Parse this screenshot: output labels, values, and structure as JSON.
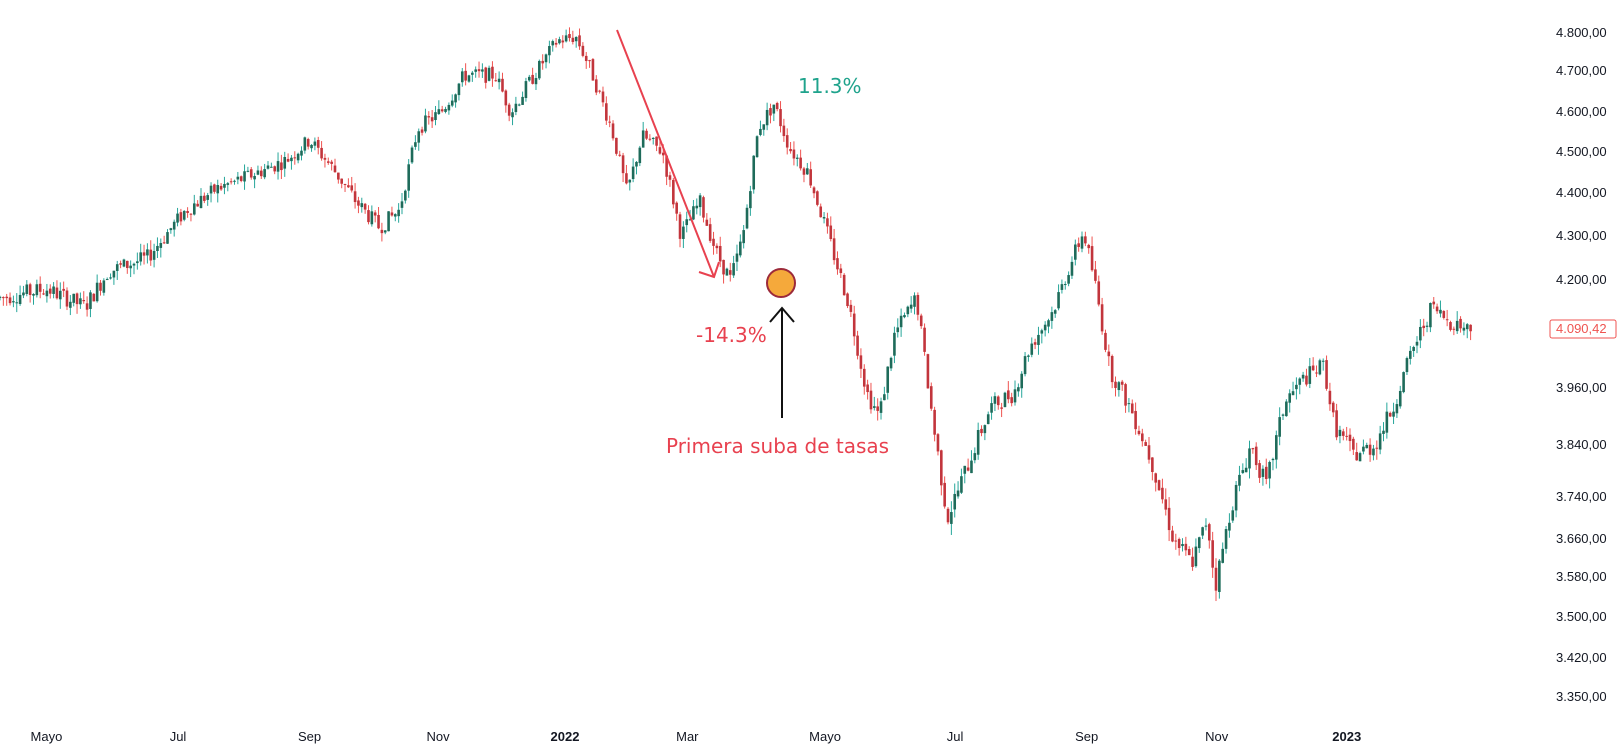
{
  "chart_data": {
    "type": "candlestick",
    "title": "",
    "ylim": [
      3320,
      4850
    ],
    "y_ticks": [
      "4.800,00",
      "4.700,00",
      "4.600,00",
      "4.500,00",
      "4.400,00",
      "4.300,00",
      "4.200,00",
      "4.090,42",
      "3.960,00",
      "3.840,00",
      "3.740,00",
      "3.660,00",
      "3.580,00",
      "3.500,00",
      "3.420,00",
      "3.350,00"
    ],
    "y_tick_values": [
      4800,
      4700,
      4600,
      4500,
      4400,
      4300,
      4200,
      4090.42,
      3960,
      3840,
      3740,
      3660,
      3580,
      3500,
      3420,
      3350
    ],
    "last_price": "4.090,42",
    "x_ticks": [
      {
        "label": "Mayo",
        "t": 0.03,
        "bold": false
      },
      {
        "label": "Jul",
        "t": 0.115,
        "bold": false
      },
      {
        "label": "Sep",
        "t": 0.2,
        "bold": false
      },
      {
        "label": "Nov",
        "t": 0.283,
        "bold": false
      },
      {
        "label": "2022",
        "t": 0.365,
        "bold": true
      },
      {
        "label": "Mar",
        "t": 0.444,
        "bold": false
      },
      {
        "label": "Mayo",
        "t": 0.533,
        "bold": false
      },
      {
        "label": "Jul",
        "t": 0.617,
        "bold": false
      },
      {
        "label": "Sep",
        "t": 0.702,
        "bold": false
      },
      {
        "label": "Nov",
        "t": 0.786,
        "bold": false
      },
      {
        "label": "2023",
        "t": 0.87,
        "bold": true
      }
    ],
    "path_anchors": [
      {
        "t": 0.0,
        "v": 4160
      },
      {
        "t": 0.03,
        "v": 4180
      },
      {
        "t": 0.055,
        "v": 4140
      },
      {
        "t": 0.07,
        "v": 4220
      },
      {
        "t": 0.095,
        "v": 4250
      },
      {
        "t": 0.12,
        "v": 4360
      },
      {
        "t": 0.14,
        "v": 4410
      },
      {
        "t": 0.16,
        "v": 4440
      },
      {
        "t": 0.185,
        "v": 4480
      },
      {
        "t": 0.2,
        "v": 4530
      },
      {
        "t": 0.215,
        "v": 4460
      },
      {
        "t": 0.23,
        "v": 4380
      },
      {
        "t": 0.245,
        "v": 4320
      },
      {
        "t": 0.258,
        "v": 4360
      },
      {
        "t": 0.27,
        "v": 4560
      },
      {
        "t": 0.285,
        "v": 4600
      },
      {
        "t": 0.3,
        "v": 4690
      },
      {
        "t": 0.32,
        "v": 4690
      },
      {
        "t": 0.33,
        "v": 4600
      },
      {
        "t": 0.345,
        "v": 4690
      },
      {
        "t": 0.36,
        "v": 4780
      },
      {
        "t": 0.372,
        "v": 4790
      },
      {
        "t": 0.382,
        "v": 4700
      },
      {
        "t": 0.395,
        "v": 4560
      },
      {
        "t": 0.405,
        "v": 4400
      },
      {
        "t": 0.415,
        "v": 4540
      },
      {
        "t": 0.428,
        "v": 4500
      },
      {
        "t": 0.44,
        "v": 4300
      },
      {
        "t": 0.452,
        "v": 4380
      },
      {
        "t": 0.463,
        "v": 4260
      },
      {
        "t": 0.472,
        "v": 4200
      },
      {
        "t": 0.48,
        "v": 4300
      },
      {
        "t": 0.49,
        "v": 4560
      },
      {
        "t": 0.5,
        "v": 4620
      },
      {
        "t": 0.51,
        "v": 4510
      },
      {
        "t": 0.522,
        "v": 4450
      },
      {
        "t": 0.535,
        "v": 4300
      },
      {
        "t": 0.548,
        "v": 4150
      },
      {
        "t": 0.56,
        "v": 3950
      },
      {
        "t": 0.568,
        "v": 3900
      },
      {
        "t": 0.578,
        "v": 4080
      },
      {
        "t": 0.592,
        "v": 4160
      },
      {
        "t": 0.603,
        "v": 3880
      },
      {
        "t": 0.612,
        "v": 3700
      },
      {
        "t": 0.625,
        "v": 3800
      },
      {
        "t": 0.64,
        "v": 3920
      },
      {
        "t": 0.655,
        "v": 3950
      },
      {
        "t": 0.665,
        "v": 4050
      },
      {
        "t": 0.68,
        "v": 4130
      },
      {
        "t": 0.693,
        "v": 4250
      },
      {
        "t": 0.7,
        "v": 4310
      },
      {
        "t": 0.707,
        "v": 4200
      },
      {
        "t": 0.717,
        "v": 4000
      },
      {
        "t": 0.73,
        "v": 3920
      },
      {
        "t": 0.745,
        "v": 3800
      },
      {
        "t": 0.758,
        "v": 3660
      },
      {
        "t": 0.77,
        "v": 3610
      },
      {
        "t": 0.78,
        "v": 3700
      },
      {
        "t": 0.785,
        "v": 3560
      },
      {
        "t": 0.795,
        "v": 3720
      },
      {
        "t": 0.808,
        "v": 3840
      },
      {
        "t": 0.818,
        "v": 3760
      },
      {
        "t": 0.83,
        "v": 3930
      },
      {
        "t": 0.842,
        "v": 3980
      },
      {
        "t": 0.855,
        "v": 4010
      },
      {
        "t": 0.862,
        "v": 3880
      },
      {
        "t": 0.875,
        "v": 3820
      },
      {
        "t": 0.888,
        "v": 3840
      },
      {
        "t": 0.9,
        "v": 3920
      },
      {
        "t": 0.912,
        "v": 4040
      },
      {
        "t": 0.925,
        "v": 4140
      },
      {
        "t": 0.935,
        "v": 4110
      },
      {
        "t": 0.95,
        "v": 4090
      }
    ],
    "annotations": {
      "down_pct": "-14.3%",
      "up_pct": "11.3%",
      "event_label": "Primera suba de tasas"
    },
    "colors": {
      "up": "#26a69a",
      "down": "#ef5350",
      "body_up": "#1e6b5a",
      "body_down": "#c2353c",
      "annotation_red": "#e8414f",
      "annotation_green": "#1fa38c",
      "marker_fill": "#f5a93b",
      "marker_stroke": "#9c2a3a",
      "arrow": "#111111"
    }
  }
}
